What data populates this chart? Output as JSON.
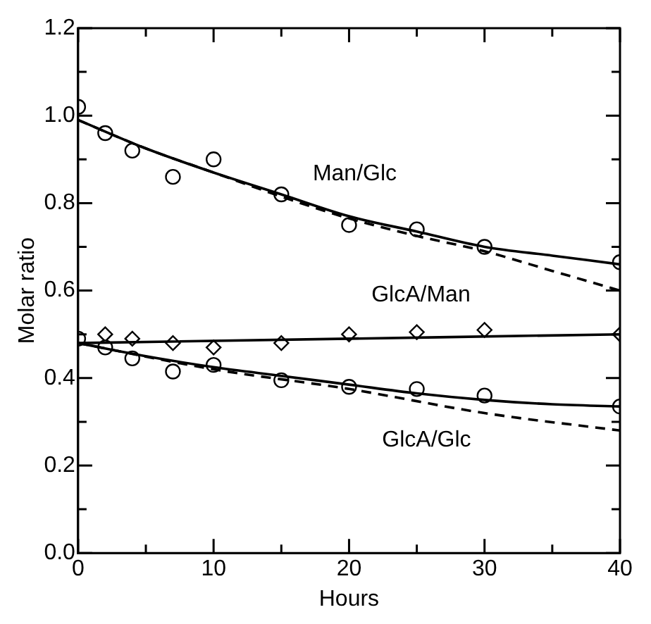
{
  "chart_data": {
    "type": "scatter",
    "xlabel": "Hours",
    "ylabel": "Molar ratio",
    "xlim": [
      0,
      40
    ],
    "ylim": [
      0,
      1.2
    ],
    "xticks": [
      0,
      {
        "value": 5,
        "label": null
      },
      10,
      {
        "value": 15,
        "label": null
      },
      20,
      {
        "value": 25,
        "label": null
      },
      30,
      {
        "value": 35,
        "label": null
      },
      40
    ],
    "yticks": [
      {
        "value": 0,
        "label": "0.0"
      },
      {
        "value": 0.1,
        "label": null
      },
      0.2,
      {
        "value": 0.3,
        "label": null
      },
      0.4,
      {
        "value": 0.5,
        "label": null
      },
      0.6,
      {
        "value": 0.7,
        "label": null
      },
      0.8,
      {
        "value": 0.9,
        "label": null
      },
      {
        "value": 1,
        "label": "1.0"
      },
      {
        "value": 1.1,
        "label": null
      },
      1.2
    ],
    "grid": false,
    "legend": false,
    "series": [
      {
        "name": "Man/Glc",
        "marker": "circle",
        "color": "#000000",
        "x": [
          0,
          2,
          4,
          7,
          10,
          15,
          20,
          25,
          30,
          40
        ],
        "values": [
          1.02,
          0.96,
          0.92,
          0.86,
          0.9,
          0.82,
          0.75,
          0.74,
          0.7,
          0.665
        ]
      },
      {
        "name": "GlcA/Man",
        "marker": "diamond",
        "color": "#000000",
        "x": [
          2,
          4,
          7,
          10,
          15,
          20,
          25,
          30,
          40
        ],
        "values": [
          0.5,
          0.49,
          0.48,
          0.47,
          0.48,
          0.5,
          0.505,
          0.51,
          0.5
        ]
      },
      {
        "name": "GlcA/Glc",
        "marker": "circle",
        "color": "#000000",
        "x": [
          0,
          2,
          4,
          7,
          10,
          15,
          20,
          25,
          30,
          40
        ],
        "values": [
          0.49,
          0.47,
          0.445,
          0.415,
          0.43,
          0.395,
          0.38,
          0.375,
          0.36,
          0.335
        ]
      },
      {
        "type": "line",
        "marker": "none",
        "line_style": "solid",
        "color": "#000000",
        "x": [
          0,
          5,
          10,
          15,
          20,
          25,
          30,
          35,
          40
        ],
        "values": [
          0.99,
          0.925,
          0.87,
          0.82,
          0.77,
          0.735,
          0.7,
          0.68,
          0.66
        ]
      },
      {
        "type": "line",
        "marker": "none",
        "line_style": "dashed",
        "color": "#000000",
        "x": [
          0,
          5,
          10,
          15,
          20,
          25,
          30,
          35,
          40
        ],
        "values": [
          0.99,
          0.925,
          0.87,
          0.815,
          0.765,
          0.725,
          0.69,
          0.645,
          0.6
        ]
      },
      {
        "type": "line",
        "marker": "none",
        "line_style": "solid",
        "color": "#000000",
        "x": [
          0,
          20,
          40
        ],
        "values": [
          0.48,
          0.49,
          0.5
        ]
      },
      {
        "type": "line",
        "marker": "none",
        "line_style": "solid",
        "color": "#000000",
        "x": [
          0,
          5,
          10,
          15,
          20,
          25,
          30,
          35,
          40
        ],
        "values": [
          0.48,
          0.45,
          0.425,
          0.405,
          0.385,
          0.365,
          0.35,
          0.34,
          0.335
        ]
      },
      {
        "type": "line",
        "marker": "none",
        "line_style": "dashed",
        "color": "#000000",
        "x": [
          0,
          10,
          20,
          30,
          40
        ],
        "values": [
          0.48,
          0.42,
          0.375,
          0.32,
          0.28
        ]
      }
    ]
  }
}
